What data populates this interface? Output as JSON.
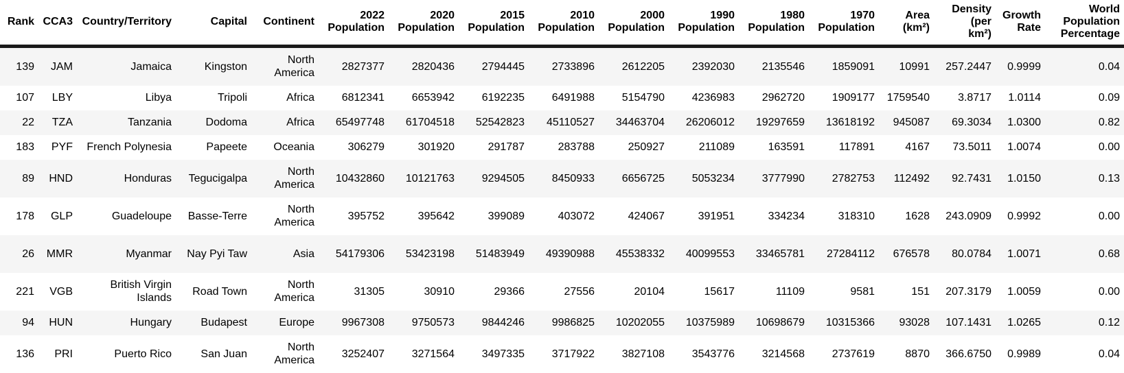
{
  "columns": [
    [
      "Rank"
    ],
    [
      "CCA3"
    ],
    [
      "Country/Territory"
    ],
    [
      "Capital"
    ],
    [
      "Continent"
    ],
    [
      "2022",
      "Population"
    ],
    [
      "2020",
      "Population"
    ],
    [
      "2015",
      "Population"
    ],
    [
      "2010",
      "Population"
    ],
    [
      "2000",
      "Population"
    ],
    [
      "1990",
      "Population"
    ],
    [
      "1980",
      "Population"
    ],
    [
      "1970",
      "Population"
    ],
    [
      "Area",
      "(km²)"
    ],
    [
      "Density",
      "(per",
      "km²)"
    ],
    [
      "Growth",
      "Rate"
    ],
    [
      "World",
      "Population",
      "Percentage"
    ]
  ],
  "rows": [
    [
      "139",
      "JAM",
      "Jamaica",
      "Kingston",
      "North America",
      "2827377",
      "2820436",
      "2794445",
      "2733896",
      "2612205",
      "2392030",
      "2135546",
      "1859091",
      "10991",
      "257.2447",
      "0.9999",
      "0.04"
    ],
    [
      "107",
      "LBY",
      "Libya",
      "Tripoli",
      "Africa",
      "6812341",
      "6653942",
      "6192235",
      "6491988",
      "5154790",
      "4236983",
      "2962720",
      "1909177",
      "1759540",
      "3.8717",
      "1.0114",
      "0.09"
    ],
    [
      "22",
      "TZA",
      "Tanzania",
      "Dodoma",
      "Africa",
      "65497748",
      "61704518",
      "52542823",
      "45110527",
      "34463704",
      "26206012",
      "19297659",
      "13618192",
      "945087",
      "69.3034",
      "1.0300",
      "0.82"
    ],
    [
      "183",
      "PYF",
      "French Polynesia",
      "Papeete",
      "Oceania",
      "306279",
      "301920",
      "291787",
      "283788",
      "250927",
      "211089",
      "163591",
      "117891",
      "4167",
      "73.5011",
      "1.0074",
      "0.00"
    ],
    [
      "89",
      "HND",
      "Honduras",
      "Tegucigalpa",
      "North America",
      "10432860",
      "10121763",
      "9294505",
      "8450933",
      "6656725",
      "5053234",
      "3777990",
      "2782753",
      "112492",
      "92.7431",
      "1.0150",
      "0.13"
    ],
    [
      "178",
      "GLP",
      "Guadeloupe",
      "Basse-Terre",
      "North America",
      "395752",
      "395642",
      "399089",
      "403072",
      "424067",
      "391951",
      "334234",
      "318310",
      "1628",
      "243.0909",
      "0.9992",
      "0.00"
    ],
    [
      "26",
      "MMR",
      "Myanmar",
      "Nay Pyi Taw",
      "Asia",
      "54179306",
      "53423198",
      "51483949",
      "49390988",
      "45538332",
      "40099553",
      "33465781",
      "27284112",
      "676578",
      "80.0784",
      "1.0071",
      "0.68"
    ],
    [
      "221",
      "VGB",
      "British Virgin Islands",
      "Road Town",
      "North America",
      "31305",
      "30910",
      "29366",
      "27556",
      "20104",
      "15617",
      "11109",
      "9581",
      "151",
      "207.3179",
      "1.0059",
      "0.00"
    ],
    [
      "94",
      "HUN",
      "Hungary",
      "Budapest",
      "Europe",
      "9967308",
      "9750573",
      "9844246",
      "9986825",
      "10202055",
      "10375989",
      "10698679",
      "10315366",
      "93028",
      "107.1431",
      "1.0265",
      "0.12"
    ],
    [
      "136",
      "PRI",
      "Puerto Rico",
      "San Juan",
      "North America",
      "3252407",
      "3271564",
      "3497335",
      "3717922",
      "3827108",
      "3543776",
      "3214568",
      "2737619",
      "8870",
      "366.6750",
      "0.9989",
      "0.04"
    ]
  ]
}
